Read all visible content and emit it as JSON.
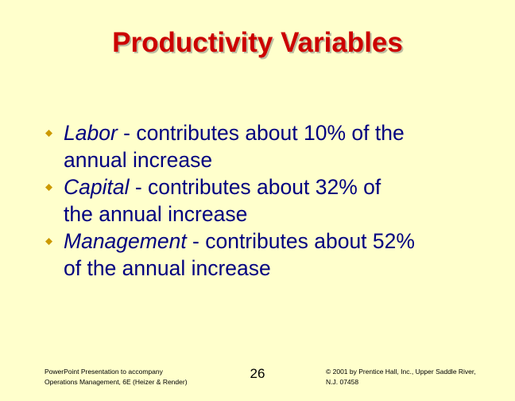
{
  "slide": {
    "title": "Productivity Variables",
    "colors": {
      "background": "#FFFFCC",
      "title": "#CC0000",
      "body_text": "#000080",
      "bullet": "#CC9900"
    },
    "bullets": [
      {
        "icon": "diamond-bullet-icon",
        "term": "Labor",
        "text_lines": [
          " - contributes about 10% of the",
          "annual increase"
        ]
      },
      {
        "icon": "diamond-bullet-icon",
        "term": "Capital",
        "text_lines": [
          " - contributes about 32% of",
          "the annual increase"
        ]
      },
      {
        "icon": "diamond-bullet-icon",
        "term": "Management",
        "text_lines": [
          " - contributes about 52%",
          "of the annual increase"
        ]
      }
    ]
  },
  "footer": {
    "left_lines": [
      "PowerPoint Presentation to accompany",
      "Operations Management, 6E (Heizer & Render)"
    ],
    "page_number": "26",
    "right_lines": [
      "© 2001 by Prentice Hall, Inc., Upper Saddle River,",
      "N.J. 07458"
    ]
  }
}
